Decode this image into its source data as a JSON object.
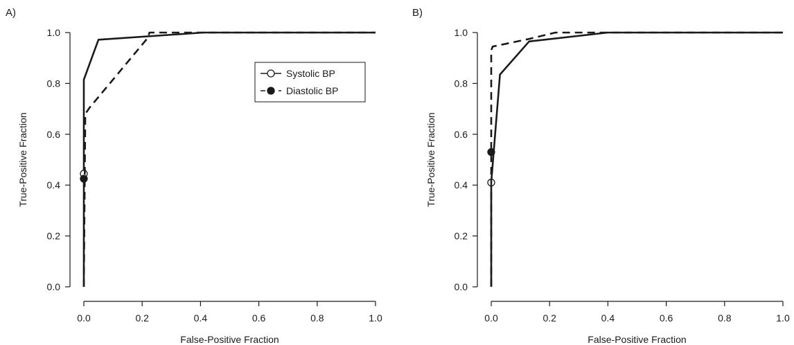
{
  "chart_data": [
    {
      "panel_label": "A)",
      "type": "line",
      "xlabel": "False-Positive Fraction",
      "ylabel": "True-Positive Fraction",
      "xlim": [
        0,
        1
      ],
      "ylim": [
        0,
        1
      ],
      "xticks": [
        "0.0",
        "0.2",
        "0.4",
        "0.6",
        "0.8",
        "1.0"
      ],
      "yticks": [
        "0.0",
        "0.2",
        "0.4",
        "0.6",
        "0.8",
        "1.0"
      ],
      "grid": false,
      "legend_position": "top-right",
      "series": [
        {
          "name": "Systolic BP",
          "line_style": "solid",
          "marker": "open-circle",
          "color": "#1a1a1a",
          "x": [
            0.0,
            0.0,
            0.05,
            0.41,
            1.0
          ],
          "y": [
            0.0,
            0.815,
            0.972,
            1.0,
            1.0
          ],
          "point": {
            "x": 0.0,
            "y": 0.445
          }
        },
        {
          "name": "Diastolic BP",
          "line_style": "dashed",
          "marker": "filled-circle",
          "color": "#1a1a1a",
          "x": [
            0.0,
            0.005,
            0.02,
            0.22,
            0.225,
            1.0
          ],
          "y": [
            0.0,
            0.68,
            0.705,
            0.98,
            1.0,
            1.0
          ],
          "point": {
            "x": 0.0,
            "y": 0.425
          }
        }
      ]
    },
    {
      "panel_label": "B)",
      "type": "line",
      "xlabel": "False-Positive Fraction",
      "ylabel": "True-Positive Fraction",
      "xlim": [
        0,
        1
      ],
      "ylim": [
        0,
        1
      ],
      "xticks": [
        "0.0",
        "0.2",
        "0.4",
        "0.6",
        "0.8",
        "1.0"
      ],
      "yticks": [
        "0.0",
        "0.2",
        "0.4",
        "0.6",
        "0.8",
        "1.0"
      ],
      "grid": false,
      "series": [
        {
          "name": "Systolic BP",
          "line_style": "solid",
          "marker": "open-circle",
          "color": "#1a1a1a",
          "x": [
            0.0,
            0.0,
            0.03,
            0.13,
            0.4,
            1.0
          ],
          "y": [
            0.0,
            0.41,
            0.835,
            0.965,
            1.0,
            1.0
          ],
          "point": {
            "x": 0.0,
            "y": 0.41
          }
        },
        {
          "name": "Diastolic BP",
          "line_style": "dashed",
          "marker": "filled-circle",
          "color": "#1a1a1a",
          "x": [
            0.0,
            0.0,
            0.0,
            0.005,
            0.13,
            0.22,
            0.38,
            1.0
          ],
          "y": [
            0.0,
            0.53,
            0.93,
            0.945,
            0.975,
            1.0,
            1.0,
            1.0
          ],
          "point": {
            "x": 0.0,
            "y": 0.53
          }
        }
      ]
    }
  ]
}
